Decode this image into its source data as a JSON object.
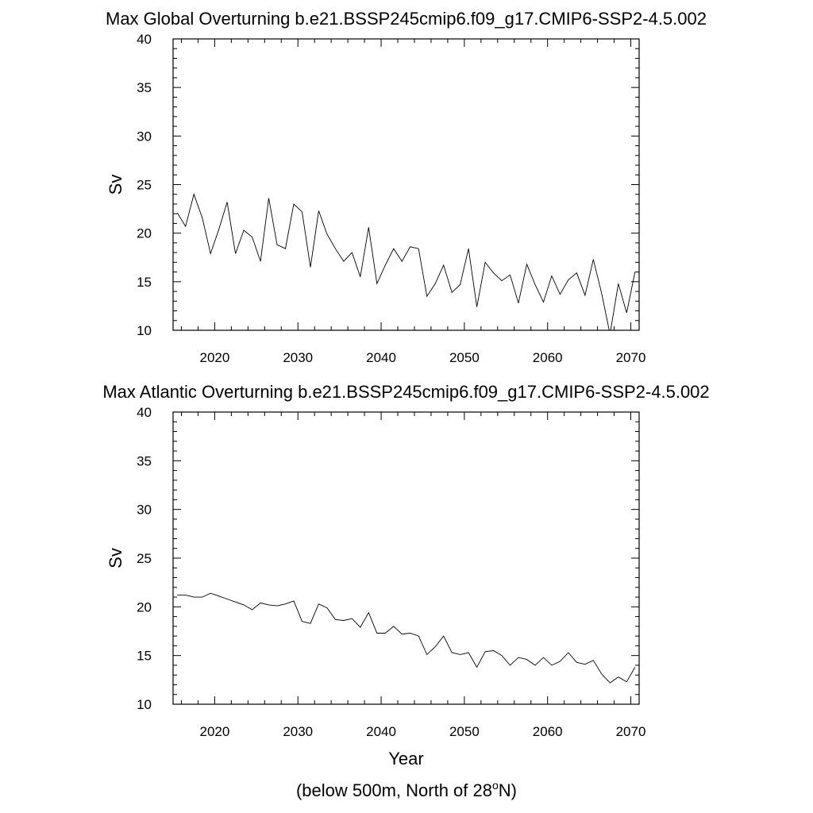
{
  "figure": {
    "note_prefix": "(below 500m, North of 28",
    "note_sup": "o",
    "note_suffix": "N)"
  },
  "chart_data": [
    {
      "type": "line",
      "title": "Max Global Overturning b.e21.BSSP245cmip6.f09_g17.CMIP6-SSP2-4.5.002",
      "xlabel": "",
      "ylabel": "Sv",
      "xlim": [
        2015,
        2071
      ],
      "ylim": [
        10,
        40
      ],
      "xticks": [
        2020,
        2030,
        2040,
        2050,
        2060,
        2070
      ],
      "yticks": [
        10,
        15,
        20,
        25,
        30,
        35,
        40
      ],
      "grid": false,
      "line_color": "#000000",
      "x": [
        2015.5,
        2016.5,
        2017.5,
        2018.5,
        2019.5,
        2020.5,
        2021.5,
        2022.5,
        2023.5,
        2024.5,
        2025.5,
        2026.5,
        2027.5,
        2028.5,
        2029.5,
        2030.5,
        2031.5,
        2032.5,
        2033.5,
        2034.5,
        2035.5,
        2036.5,
        2037.5,
        2038.5,
        2039.5,
        2040.5,
        2041.5,
        2042.5,
        2043.5,
        2044.5,
        2045.5,
        2046.5,
        2047.5,
        2048.5,
        2049.5,
        2050.5,
        2051.5,
        2052.5,
        2053.5,
        2054.5,
        2055.5,
        2056.5,
        2057.5,
        2058.5,
        2059.5,
        2060.5,
        2061.5,
        2062.5,
        2063.5,
        2064.5,
        2065.5,
        2066.5,
        2067.5,
        2068.5,
        2069.5,
        2070.5
      ],
      "y": [
        22.1,
        20.7,
        24.0,
        21.6,
        17.9,
        20.4,
        23.2,
        17.9,
        20.3,
        19.6,
        17.1,
        23.6,
        18.8,
        18.4,
        23.0,
        22.2,
        16.5,
        22.3,
        19.9,
        18.4,
        17.1,
        18.0,
        15.5,
        20.6,
        14.8,
        16.7,
        18.4,
        17.1,
        18.6,
        18.4,
        13.5,
        14.8,
        16.7,
        13.9,
        14.7,
        18.4,
        12.4,
        17.0,
        15.9,
        15.1,
        15.7,
        12.8,
        16.8,
        14.7,
        12.9,
        15.6,
        13.7,
        15.2,
        15.9,
        13.6,
        17.3,
        13.8,
        9.6,
        14.8,
        11.8,
        16.0
      ]
    },
    {
      "type": "line",
      "title": "Max Atlantic Overturning b.e21.BSSP245cmip6.f09_g17.CMIP6-SSP2-4.5.002",
      "xlabel": "Year",
      "ylabel": "Sv",
      "xlim": [
        2015,
        2071
      ],
      "ylim": [
        10,
        40
      ],
      "xticks": [
        2020,
        2030,
        2040,
        2050,
        2060,
        2070
      ],
      "yticks": [
        10,
        15,
        20,
        25,
        30,
        35,
        40
      ],
      "grid": false,
      "line_color": "#000000",
      "x": [
        2015.5,
        2016.5,
        2017.5,
        2018.5,
        2019.5,
        2020.5,
        2021.5,
        2022.5,
        2023.5,
        2024.5,
        2025.5,
        2026.5,
        2027.5,
        2028.5,
        2029.5,
        2030.5,
        2031.5,
        2032.5,
        2033.5,
        2034.5,
        2035.5,
        2036.5,
        2037.5,
        2038.5,
        2039.5,
        2040.5,
        2041.5,
        2042.5,
        2043.5,
        2044.5,
        2045.5,
        2046.5,
        2047.5,
        2048.5,
        2049.5,
        2050.5,
        2051.5,
        2052.5,
        2053.5,
        2054.5,
        2055.5,
        2056.5,
        2057.5,
        2058.5,
        2059.5,
        2060.5,
        2061.5,
        2062.5,
        2063.5,
        2064.5,
        2065.5,
        2066.5,
        2067.5,
        2068.5,
        2069.5,
        2070.5
      ],
      "y": [
        21.2,
        21.2,
        21.0,
        21.0,
        21.4,
        21.1,
        20.8,
        20.5,
        20.2,
        19.7,
        20.4,
        20.2,
        20.1,
        20.3,
        20.6,
        18.5,
        18.3,
        20.3,
        19.9,
        18.7,
        18.6,
        18.8,
        17.9,
        19.4,
        17.3,
        17.3,
        18.0,
        17.2,
        17.3,
        17.0,
        15.1,
        15.9,
        17.0,
        15.3,
        15.1,
        15.3,
        13.8,
        15.4,
        15.5,
        15.0,
        14.0,
        14.8,
        14.6,
        14.0,
        14.8,
        14.0,
        14.4,
        15.3,
        14.3,
        14.1,
        14.5,
        13.1,
        12.2,
        12.8,
        12.3,
        13.8
      ]
    }
  ]
}
